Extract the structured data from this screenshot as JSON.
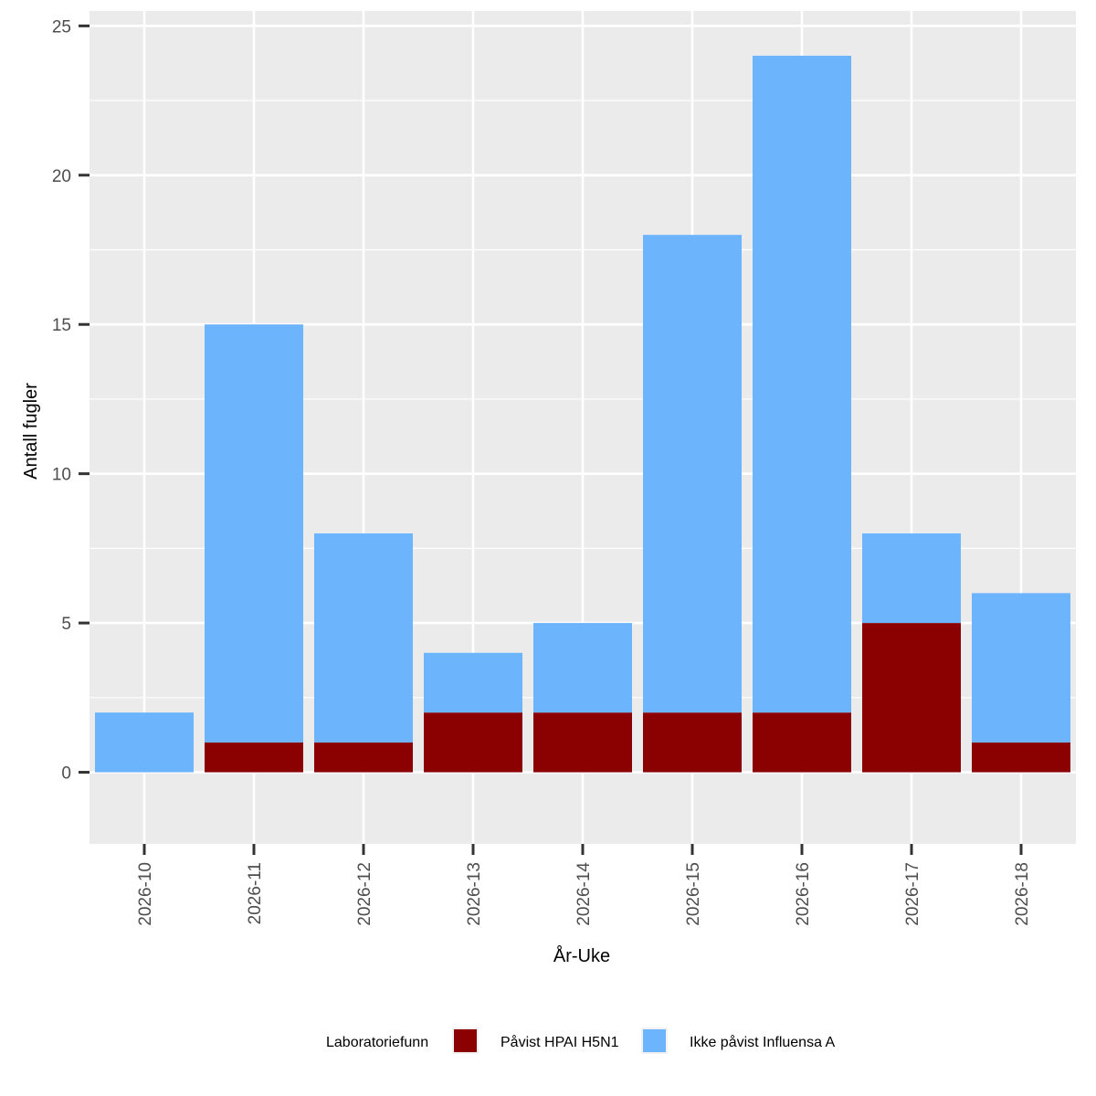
{
  "chart_data": {
    "type": "bar",
    "stacked": true,
    "title": "",
    "xlabel": "År-Uke",
    "ylabel": "Antall fugler",
    "categories": [
      "2026-10",
      "2026-11",
      "2026-12",
      "2026-13",
      "2026-14",
      "2026-15",
      "2026-16",
      "2026-17",
      "2026-18"
    ],
    "series": [
      {
        "name": "Påvist HPAI H5N1",
        "color": "#8B0000",
        "values": [
          0,
          1,
          1,
          2,
          2,
          2,
          2,
          5,
          1
        ]
      },
      {
        "name": "Ikke påvist Influensa A",
        "color": "#6CB4FC",
        "values": [
          2,
          14,
          7,
          2,
          3,
          16,
          22,
          3,
          5
        ]
      }
    ],
    "ylim": [
      -2.4,
      25.5
    ],
    "yticks": [
      0,
      5,
      10,
      15,
      20,
      25
    ],
    "grid": true,
    "panel_background": "#EBEBEB",
    "legend": {
      "title": "Laboratoriefunn",
      "position": "bottom"
    }
  }
}
